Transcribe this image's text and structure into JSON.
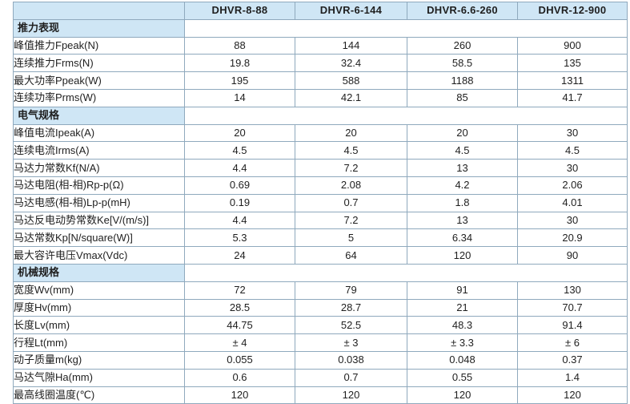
{
  "table": {
    "models": [
      "DHVR-8-88",
      "DHVR-6-144",
      "DHVR-6.6-260",
      "DHVR-12-900"
    ],
    "sections": [
      {
        "title": "推力表现",
        "rows": [
          {
            "label": "峰值推力Fpeak(N)",
            "values": [
              "88",
              "144",
              "260",
              "900"
            ]
          },
          {
            "label": "连续推力Frms(N)",
            "values": [
              "19.8",
              "32.4",
              "58.5",
              "135"
            ]
          },
          {
            "label": "最大功率Ppeak(W)",
            "values": [
              "195",
              "588",
              "1188",
              "1311"
            ]
          },
          {
            "label": "连续功率Prms(W)",
            "values": [
              "14",
              "42.1",
              "85",
              "41.7"
            ]
          }
        ]
      },
      {
        "title": "电气规格",
        "rows": [
          {
            "label": "峰值电流Ipeak(A)",
            "values": [
              "20",
              "20",
              "20",
              "30"
            ]
          },
          {
            "label": "连续电流Irms(A)",
            "values": [
              "4.5",
              "4.5",
              "4.5",
              "4.5"
            ]
          },
          {
            "label": "马达力常数Kf(N/A)",
            "values": [
              "4.4",
              "7.2",
              "13",
              "30"
            ]
          },
          {
            "label": "马达电阻(相-相)Rp-p(Ω)",
            "values": [
              "0.69",
              "2.08",
              "4.2",
              "2.06"
            ]
          },
          {
            "label": "马达电感(相-相)Lp-p(mH)",
            "values": [
              "0.19",
              "0.7",
              "1.8",
              "4.01"
            ]
          },
          {
            "label": "马达反电动势常数Ke[V/(m/s)]",
            "values": [
              "4.4",
              "7.2",
              "13",
              "30"
            ]
          },
          {
            "label": "马达常数Kp[N/square(W)]",
            "values": [
              "5.3",
              "5",
              "6.34",
              "20.9"
            ]
          },
          {
            "label": "最大容许电压Vmax(Vdc)",
            "values": [
              "24",
              "64",
              "120",
              "90"
            ]
          }
        ]
      },
      {
        "title": "机械规格",
        "rows": [
          {
            "label": "宽度Wv(mm)",
            "values": [
              "72",
              "79",
              "91",
              "130"
            ]
          },
          {
            "label": "厚度Hv(mm)",
            "values": [
              "28.5",
              "28.7",
              "21",
              "70.7"
            ]
          },
          {
            "label": "长度Lv(mm)",
            "values": [
              "44.75",
              "52.5",
              "48.3",
              "91.4"
            ]
          },
          {
            "label": "行程Lt(mm)",
            "values": [
              "± 4",
              "± 3",
              "± 3.3",
              "± 6"
            ]
          },
          {
            "label": "动子质量m(kg)",
            "values": [
              "0.055",
              "0.038",
              "0.048",
              "0.37"
            ]
          },
          {
            "label": "马达气隙Ha(mm)",
            "values": [
              "0.6",
              "0.7",
              "0.55",
              "1.4"
            ]
          },
          {
            "label": "最高线圈温度(℃)",
            "values": [
              "120",
              "120",
              "120",
              "120"
            ]
          }
        ]
      }
    ]
  }
}
